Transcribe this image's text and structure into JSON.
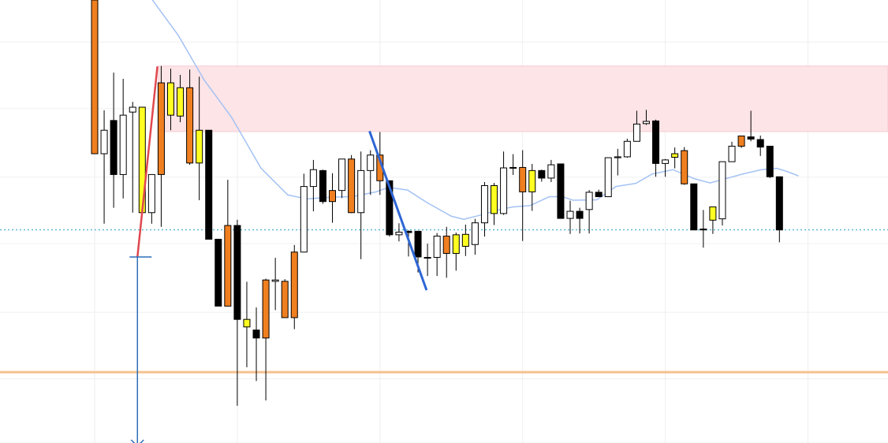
{
  "chart_data": {
    "type": "candlestick",
    "grid": true,
    "x_gridlines_at": [
      1,
      16,
      31,
      46,
      61,
      76
    ],
    "ylim": [
      0.0,
      100.0
    ],
    "y_gridlines": [
      0,
      14.5,
      29.5,
      45,
      60,
      75.5,
      90.5
    ],
    "color_legend": {
      "bull": "#ffffff",
      "bear": "#000000",
      "orange": "#f07f20",
      "yellow": "#ffff22"
    },
    "candles": [
      {
        "o": 65.3,
        "h": 100.0,
        "l": 65.3,
        "c": 100.0,
        "color": "orange"
      },
      {
        "o": 65.3,
        "h": 75.1,
        "l": 49.5,
        "c": 70.6,
        "color": "bull"
      },
      {
        "o": 72.8,
        "h": 83.6,
        "l": 53.1,
        "c": 60.6,
        "color": "bear"
      },
      {
        "o": 60.6,
        "h": 82.2,
        "l": 55.2,
        "c": 74.0,
        "color": "bull"
      },
      {
        "o": 75.8,
        "h": 77.0,
        "l": 52.0,
        "c": 74.7,
        "color": "bull"
      },
      {
        "o": 75.8,
        "h": 75.8,
        "l": 52.0,
        "c": 52.0,
        "color": "yellow"
      },
      {
        "o": 52.0,
        "h": 60.6,
        "l": 49.5,
        "c": 60.6,
        "color": "bull"
      },
      {
        "o": 60.6,
        "h": 85.1,
        "l": 48.8,
        "c": 81.3,
        "color": "orange"
      },
      {
        "o": 74.0,
        "h": 84.5,
        "l": 70.6,
        "c": 81.3,
        "color": "yellow"
      },
      {
        "o": 73.8,
        "h": 83.1,
        "l": 72.4,
        "c": 80.2,
        "color": "yellow"
      },
      {
        "o": 63.2,
        "h": 84.3,
        "l": 62.8,
        "c": 80.2,
        "color": "orange"
      },
      {
        "o": 63.2,
        "h": 82.7,
        "l": 54.8,
        "c": 70.6,
        "color": "yellow"
      },
      {
        "o": 70.6,
        "h": 70.6,
        "l": 46.0,
        "c": 46.0,
        "color": "bear"
      },
      {
        "o": 46.0,
        "h": 46.0,
        "l": 30.9,
        "c": 30.9,
        "color": "bear"
      },
      {
        "o": 30.9,
        "h": 59.4,
        "l": 30.9,
        "c": 49.1,
        "color": "orange"
      },
      {
        "o": 49.1,
        "h": 50.4,
        "l": 8.4,
        "c": 27.9,
        "color": "bear"
      },
      {
        "o": 27.9,
        "h": 36.4,
        "l": 17.1,
        "c": 26.2,
        "color": "yellow"
      },
      {
        "o": 25.5,
        "h": 30.6,
        "l": 14.0,
        "c": 23.7,
        "color": "bear"
      },
      {
        "o": 23.7,
        "h": 37.1,
        "l": 9.6,
        "c": 36.8,
        "color": "orange"
      },
      {
        "o": 36.8,
        "h": 41.8,
        "l": 30.0,
        "c": 36.5,
        "color": "bull"
      },
      {
        "o": 36.5,
        "h": 37.0,
        "l": 28.3,
        "c": 28.3,
        "color": "orange"
      },
      {
        "o": 28.3,
        "h": 44.7,
        "l": 25.7,
        "c": 43.1,
        "color": "orange"
      },
      {
        "o": 43.1,
        "h": 60.8,
        "l": 43.0,
        "c": 57.9,
        "color": "bull"
      },
      {
        "o": 57.9,
        "h": 63.9,
        "l": 52.3,
        "c": 61.7,
        "color": "bull"
      },
      {
        "o": 61.5,
        "h": 61.7,
        "l": 54.0,
        "c": 54.5,
        "color": "bear"
      },
      {
        "o": 54.5,
        "h": 60.9,
        "l": 49.7,
        "c": 57.0,
        "color": "orange"
      },
      {
        "o": 57.0,
        "h": 64.1,
        "l": 55.3,
        "c": 64.1,
        "color": "bull"
      },
      {
        "o": 64.1,
        "h": 65.0,
        "l": 51.9,
        "c": 52.0,
        "color": "orange"
      },
      {
        "o": 52.0,
        "h": 65.8,
        "l": 41.5,
        "c": 61.5,
        "color": "bull"
      },
      {
        "o": 61.5,
        "h": 66.1,
        "l": 56.0,
        "c": 65.0,
        "color": "bull"
      },
      {
        "o": 65.0,
        "h": 70.2,
        "l": 56.0,
        "c": 59.2,
        "color": "orange"
      },
      {
        "o": 59.2,
        "h": 59.2,
        "l": 46.6,
        "c": 47.0,
        "color": "bear"
      },
      {
        "o": 47.0,
        "h": 49.6,
        "l": 45.5,
        "c": 47.6,
        "color": "bull"
      },
      {
        "o": 47.5,
        "h": 48.0,
        "l": 42.1,
        "c": 47.8,
        "color": "bear"
      },
      {
        "o": 47.8,
        "h": 47.8,
        "l": 38.5,
        "c": 42.0,
        "color": "bear"
      },
      {
        "o": 41.9,
        "h": 45.0,
        "l": 37.7,
        "c": 41.9,
        "color": "bull"
      },
      {
        "o": 41.9,
        "h": 47.4,
        "l": 37.7,
        "c": 46.7,
        "color": "bull"
      },
      {
        "o": 46.7,
        "h": 48.8,
        "l": 37.3,
        "c": 42.8,
        "color": "orange"
      },
      {
        "o": 42.8,
        "h": 47.5,
        "l": 38.9,
        "c": 47.0,
        "color": "yellow"
      },
      {
        "o": 44.4,
        "h": 49.3,
        "l": 42.2,
        "c": 47.1,
        "color": "yellow"
      },
      {
        "o": 44.8,
        "h": 50.6,
        "l": 42.5,
        "c": 49.7,
        "color": "bull"
      },
      {
        "o": 49.7,
        "h": 58.9,
        "l": 46.6,
        "c": 58.1,
        "color": "bull"
      },
      {
        "o": 58.1,
        "h": 58.7,
        "l": 49.2,
        "c": 51.8,
        "color": "yellow"
      },
      {
        "o": 51.8,
        "h": 65.8,
        "l": 51.5,
        "c": 62.1,
        "color": "bull"
      },
      {
        "o": 62.1,
        "h": 65.2,
        "l": 60.5,
        "c": 62.2,
        "color": "bull"
      },
      {
        "o": 62.2,
        "h": 66.1,
        "l": 45.6,
        "c": 56.7,
        "color": "orange"
      },
      {
        "o": 56.7,
        "h": 63.0,
        "l": 52.4,
        "c": 61.5,
        "color": "yellow"
      },
      {
        "o": 61.5,
        "h": 61.7,
        "l": 59.0,
        "c": 59.8,
        "color": "bear"
      },
      {
        "o": 59.8,
        "h": 63.9,
        "l": 58.9,
        "c": 62.8,
        "color": "bull"
      },
      {
        "o": 63.0,
        "h": 63.0,
        "l": 50.7,
        "c": 50.7,
        "color": "bear"
      },
      {
        "o": 50.7,
        "h": 54.7,
        "l": 47.2,
        "c": 52.3,
        "color": "bull"
      },
      {
        "o": 52.3,
        "h": 53.1,
        "l": 47.3,
        "c": 50.7,
        "color": "bear"
      },
      {
        "o": 52.7,
        "h": 57.1,
        "l": 47.3,
        "c": 56.6,
        "color": "bull"
      },
      {
        "o": 56.6,
        "h": 57.2,
        "l": 55.6,
        "c": 55.6,
        "color": "bear"
      },
      {
        "o": 55.6,
        "h": 64.4,
        "l": 55.6,
        "c": 64.4,
        "color": "bull"
      },
      {
        "o": 64.4,
        "h": 66.4,
        "l": 60.4,
        "c": 64.6,
        "color": "bull"
      },
      {
        "o": 64.6,
        "h": 68.7,
        "l": 64.4,
        "c": 68.1,
        "color": "bull"
      },
      {
        "o": 68.1,
        "h": 75.0,
        "l": 68.1,
        "c": 72.0,
        "color": "bull"
      },
      {
        "o": 72.1,
        "h": 75.2,
        "l": 71.8,
        "c": 72.6,
        "color": "bull"
      },
      {
        "o": 72.7,
        "h": 73.0,
        "l": 60.1,
        "c": 63.1,
        "color": "bear"
      },
      {
        "o": 63.1,
        "h": 64.1,
        "l": 60.1,
        "c": 63.9,
        "color": "bull"
      },
      {
        "o": 64.5,
        "h": 66.7,
        "l": 62.0,
        "c": 65.3,
        "color": "yellow"
      },
      {
        "o": 66.0,
        "h": 66.8,
        "l": 58.3,
        "c": 58.5,
        "color": "orange"
      },
      {
        "o": 58.5,
        "h": 58.5,
        "l": 48.1,
        "c": 48.1,
        "color": "bear"
      },
      {
        "o": 48.1,
        "h": 52.6,
        "l": 44.1,
        "c": 48.3,
        "color": "bear"
      },
      {
        "o": 50.3,
        "h": 53.3,
        "l": 47.2,
        "c": 53.3,
        "color": "yellow"
      },
      {
        "o": 50.6,
        "h": 63.5,
        "l": 49.1,
        "c": 63.5,
        "color": "bull"
      },
      {
        "o": 63.5,
        "h": 68.0,
        "l": 63.5,
        "c": 67.0,
        "color": "bull"
      },
      {
        "o": 67.0,
        "h": 69.3,
        "l": 66.6,
        "c": 69.3,
        "color": "orange"
      },
      {
        "o": 69.1,
        "h": 75.0,
        "l": 68.1,
        "c": 68.6,
        "color": "bear"
      },
      {
        "o": 68.5,
        "h": 69.4,
        "l": 64.8,
        "c": 66.8,
        "color": "bear"
      },
      {
        "o": 67.0,
        "h": 67.0,
        "l": 59.8,
        "c": 60.1,
        "color": "bear"
      },
      {
        "o": 60.1,
        "h": 60.1,
        "l": 45.3,
        "c": 48.1,
        "color": "bear"
      }
    ],
    "moving_average": {
      "color": "#a4c2f4",
      "points": [
        [
          6.4,
          102.0
        ],
        [
          9.8,
          92.0
        ],
        [
          12.5,
          82.0
        ],
        [
          15.4,
          73.5
        ],
        [
          18.5,
          62.0
        ],
        [
          21.3,
          56.0
        ],
        [
          23.3,
          55.1
        ],
        [
          25.8,
          55.5
        ],
        [
          28.1,
          55.6
        ],
        [
          30.6,
          56.7
        ],
        [
          31.9,
          57.7
        ],
        [
          33.9,
          57.1
        ],
        [
          36.0,
          54.2
        ],
        [
          38.5,
          51.2
        ],
        [
          39.8,
          50.5
        ],
        [
          41.3,
          51.3
        ],
        [
          43.8,
          52.8
        ],
        [
          45.0,
          53.3
        ],
        [
          46.8,
          53.6
        ],
        [
          48.8,
          55.6
        ],
        [
          50.2,
          55.6
        ],
        [
          51.3,
          54.8
        ],
        [
          53.8,
          54.9
        ],
        [
          55.8,
          57.9
        ],
        [
          57.9,
          58.6
        ],
        [
          59.6,
          60.7
        ],
        [
          61.8,
          61.7
        ],
        [
          64.0,
          59.7
        ],
        [
          65.7,
          58.7
        ],
        [
          67.4,
          59.7
        ],
        [
          69.1,
          60.7
        ],
        [
          71.1,
          61.7
        ],
        [
          72.7,
          62.0
        ],
        [
          73.8,
          61.3
        ],
        [
          75.0,
          60.3
        ]
      ]
    },
    "annotations": {
      "supply_zone": {
        "y_low": 70.3,
        "y_high": 85.1,
        "x_start": 7.7,
        "color": "#fde4e6"
      },
      "horizontal_dotted_line": {
        "y": 48.1,
        "color": "#26a0c8"
      },
      "horizontal_solid_line": {
        "y": 16.0,
        "color": "#f6c18f"
      },
      "rising_trendline": {
        "from": [
          5.5,
          42.0
        ],
        "to": [
          7.6,
          85.0
        ],
        "color": "#e0484f"
      },
      "falling_trendline": {
        "from": [
          29.9,
          70.4
        ],
        "to": [
          35.9,
          34.5
        ],
        "color": "#2f66d5"
      },
      "measure_tool": {
        "x": 5.5,
        "y_from": 42.0,
        "y_to": 0.0,
        "color": "#2e6fb8"
      }
    }
  }
}
